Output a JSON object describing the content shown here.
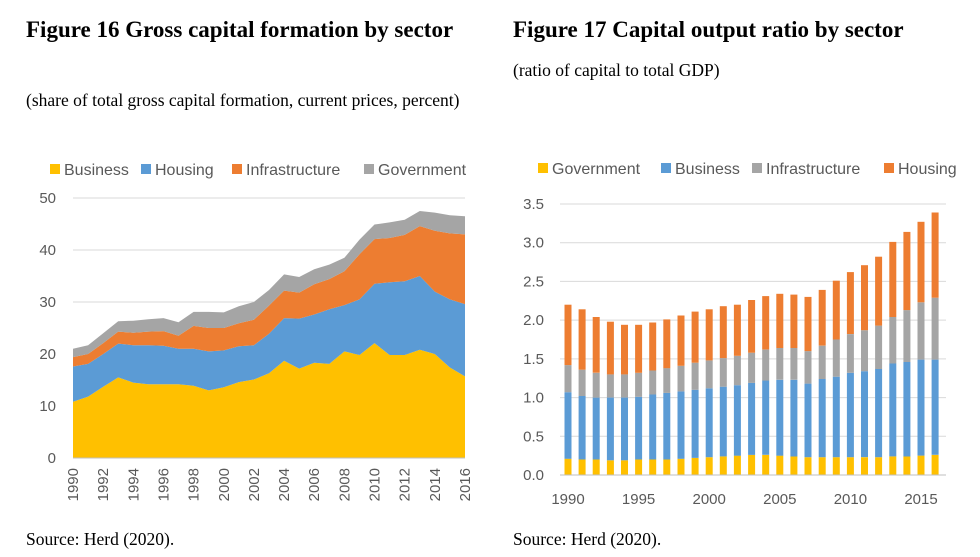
{
  "figure16": {
    "title": "Figure 16 Gross capital formation by sector",
    "subtitle": "(share of total gross capital formation, current prices, percent)",
    "source": "Source: Herd (2020).",
    "colors": {
      "Business": "#FFC000",
      "Housing": "#5B9BD5",
      "Infrastructure": "#ED7D31",
      "Government": "#A5A5A5"
    }
  },
  "figure17": {
    "title": "Figure 17 Capital output ratio by sector",
    "subtitle": "(ratio of capital to total GDP)",
    "source": "Source: Herd (2020).",
    "colors": {
      "Government": "#FFC000",
      "Business": "#5B9BD5",
      "Infrastructure": "#A5A5A5",
      "Housing": "#ED7D31"
    }
  },
  "chart_data": [
    {
      "type": "area",
      "stacked": true,
      "title": "Figure 16 Gross capital formation by sector",
      "legend": [
        "Business",
        "Housing",
        "Infrastructure",
        "Government"
      ],
      "x": [
        1990,
        1991,
        1992,
        1993,
        1994,
        1995,
        1996,
        1997,
        1998,
        1999,
        2000,
        2001,
        2002,
        2003,
        2004,
        2005,
        2006,
        2007,
        2008,
        2009,
        2010,
        2011,
        2012,
        2013,
        2014,
        2015,
        2016
      ],
      "x_ticks": [
        "1990",
        "1992",
        "1994",
        "1996",
        "1998",
        "2000",
        "2002",
        "2004",
        "2006",
        "2008",
        "2010",
        "2012",
        "2014",
        "2016"
      ],
      "ylim": [
        0,
        50
      ],
      "y_ticks": [
        "0",
        "10",
        "20",
        "30",
        "40",
        "50"
      ],
      "series": [
        {
          "name": "Business",
          "values": [
            10.8,
            11.8,
            13.7,
            15.5,
            14.5,
            14.2,
            14.2,
            14.2,
            13.9,
            13.0,
            13.6,
            14.6,
            15.1,
            16.3,
            18.7,
            17.2,
            18.3,
            18.1,
            20.5,
            19.8,
            22.1,
            19.8,
            19.8,
            20.8,
            20.0,
            17.4,
            15.7
          ]
        },
        {
          "name": "Housing",
          "values": [
            6.8,
            6.3,
            6.3,
            6.5,
            7.2,
            7.5,
            7.4,
            6.8,
            7.1,
            7.5,
            7.1,
            6.9,
            6.6,
            7.6,
            8.2,
            9.6,
            9.3,
            10.5,
            8.9,
            10.7,
            11.4,
            14.0,
            14.2,
            14.2,
            12.0,
            13.1,
            13.9
          ]
        },
        {
          "name": "Infrastructure",
          "values": [
            1.8,
            1.9,
            2.1,
            2.3,
            2.4,
            2.6,
            2.8,
            2.5,
            4.4,
            4.5,
            4.3,
            4.4,
            4.9,
            5.4,
            5.3,
            5.0,
            5.8,
            5.8,
            6.5,
            8.7,
            8.6,
            8.5,
            8.9,
            9.6,
            11.7,
            12.7,
            13.4
          ]
        },
        {
          "name": "Government",
          "values": [
            1.6,
            1.7,
            1.9,
            2.0,
            2.3,
            2.4,
            2.5,
            2.6,
            2.7,
            3.1,
            3.0,
            3.3,
            3.4,
            3.0,
            3.1,
            3.0,
            2.9,
            2.8,
            2.6,
            2.8,
            2.8,
            3.0,
            2.9,
            2.9,
            3.5,
            3.5,
            3.5
          ]
        }
      ]
    },
    {
      "type": "bar",
      "stacked": true,
      "title": "Figure 17 Capital output ratio by sector",
      "legend": [
        "Government",
        "Business",
        "Infrastructure",
        "Housing"
      ],
      "x": [
        1990,
        1991,
        1992,
        1993,
        1994,
        1995,
        1996,
        1997,
        1998,
        1999,
        2000,
        2001,
        2002,
        2003,
        2004,
        2005,
        2006,
        2007,
        2008,
        2009,
        2010,
        2011,
        2012,
        2013,
        2014,
        2015,
        2016
      ],
      "x_ticks": [
        "1990",
        "1995",
        "2000",
        "2005",
        "2010",
        "2015"
      ],
      "ylim": [
        0,
        3.5
      ],
      "y_ticks": [
        "0.0",
        "0.5",
        "1.0",
        "1.5",
        "2.0",
        "2.5",
        "3.0",
        "3.5"
      ],
      "series": [
        {
          "name": "Government",
          "values": [
            0.21,
            0.2,
            0.2,
            0.19,
            0.19,
            0.2,
            0.2,
            0.2,
            0.21,
            0.22,
            0.23,
            0.24,
            0.25,
            0.26,
            0.26,
            0.25,
            0.24,
            0.23,
            0.23,
            0.23,
            0.23,
            0.23,
            0.23,
            0.24,
            0.24,
            0.25,
            0.26
          ]
        },
        {
          "name": "Business",
          "values": [
            0.86,
            0.82,
            0.8,
            0.81,
            0.81,
            0.81,
            0.84,
            0.86,
            0.87,
            0.88,
            0.89,
            0.9,
            0.91,
            0.93,
            0.96,
            0.98,
            0.99,
            0.95,
            1.01,
            1.04,
            1.09,
            1.11,
            1.14,
            1.2,
            1.22,
            1.24,
            1.23
          ]
        },
        {
          "name": "Infrastructure",
          "values": [
            0.35,
            0.34,
            0.32,
            0.3,
            0.3,
            0.31,
            0.31,
            0.32,
            0.33,
            0.35,
            0.36,
            0.37,
            0.38,
            0.39,
            0.4,
            0.41,
            0.41,
            0.42,
            0.43,
            0.48,
            0.5,
            0.53,
            0.56,
            0.6,
            0.67,
            0.74,
            0.8
          ]
        },
        {
          "name": "Housing",
          "values": [
            0.78,
            0.78,
            0.72,
            0.68,
            0.64,
            0.62,
            0.62,
            0.63,
            0.65,
            0.66,
            0.66,
            0.67,
            0.66,
            0.68,
            0.69,
            0.7,
            0.69,
            0.7,
            0.72,
            0.76,
            0.8,
            0.84,
            0.89,
            0.97,
            1.01,
            1.04,
            1.1
          ]
        }
      ]
    }
  ]
}
